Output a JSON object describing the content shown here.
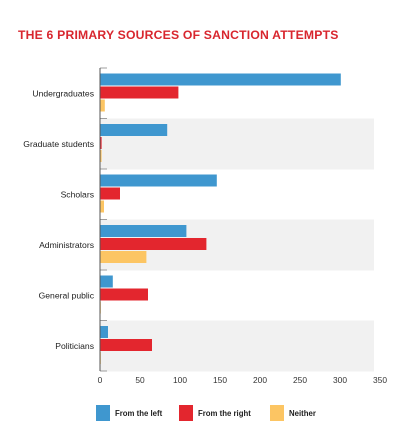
{
  "chart_data": {
    "type": "bar",
    "orientation": "horizontal",
    "title": "THE 6 PRIMARY SOURCES OF SANCTION ATTEMPTS",
    "categories": [
      "Undergraduates",
      "Graduate students",
      "Scholars",
      "Administrators",
      "General public",
      "Politicians"
    ],
    "series": [
      {
        "name": "From the left",
        "color": "#3f97cf",
        "values": [
          301,
          84,
          146,
          108,
          16,
          10
        ]
      },
      {
        "name": "From the right",
        "color": "#e3262e",
        "values": [
          98,
          2,
          25,
          133,
          60,
          65
        ]
      },
      {
        "name": "Neither",
        "color": "#fcc563",
        "values": [
          6,
          2,
          5,
          58,
          1,
          1
        ]
      }
    ],
    "xlim": [
      0,
      350
    ],
    "xticks": [
      0,
      50,
      100,
      150,
      200,
      250,
      300,
      350
    ],
    "grid": false,
    "band_color": "#f1f1f1",
    "legend_position": "bottom"
  }
}
